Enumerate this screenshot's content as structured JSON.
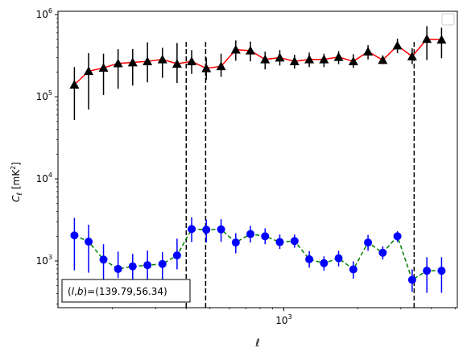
{
  "chart_data": {
    "type": "scatter",
    "xscale": "log",
    "yscale": "log",
    "xlim": [
      120,
      5100
    ],
    "ylim": [
      270,
      1100000
    ],
    "xlabel": "ℓ",
    "ylabel_main": "C",
    "ylabel_sub": "ℓ",
    "ylabel_unit": "[mK",
    "ylabel_unit_sup": "2",
    "ylabel_unit_close": "]",
    "x_ticks": [
      {
        "value": 1000,
        "label": "10",
        "exp": "3"
      }
    ],
    "y_ticks": [
      {
        "value": 1000,
        "label": "10",
        "exp": "3"
      },
      {
        "value": 10000,
        "label": "10",
        "exp": "4"
      },
      {
        "value": 100000,
        "label": "10",
        "exp": "5"
      },
      {
        "value": 1000000,
        "label": "10",
        "exp": "6"
      }
    ],
    "grid": false,
    "legend": "top-right (empty)",
    "annotation": "(l,b)=(139.79,56.34)",
    "annotation_parts": {
      "open": "(",
      "l": "l",
      "comma": ",",
      "b": "b",
      "eq": ")=(139.79,56.34)"
    },
    "vlines": [
      {
        "x": 400,
        "ymax": 470000
      },
      {
        "x": 480,
        "ymax": 470000
      },
      {
        "x": 3400,
        "ymax": 470000
      }
    ],
    "series": [
      {
        "marker": "triangle",
        "marker_color": "#000000",
        "line_color": "#ff0000",
        "line_style": "solid",
        "errorbar_color": "#000000",
        "x": [
          140,
          160,
          184,
          211,
          242,
          278,
          320,
          367,
          421,
          483,
          555,
          637,
          731,
          839,
          963,
          1106,
          1270,
          1458,
          1673,
          1921,
          2205,
          2532,
          2906,
          3337,
          3831,
          4398
        ],
        "y": [
          140000,
          205000,
          225000,
          255000,
          262000,
          270000,
          285000,
          252000,
          270000,
          222000,
          235000,
          375000,
          365000,
          285000,
          300000,
          270000,
          285000,
          285000,
          305000,
          270000,
          355000,
          280000,
          420000,
          310000,
          505000,
          495000
        ],
        "err_lo": [
          88000,
          135000,
          120000,
          130000,
          125000,
          120000,
          115000,
          105000,
          80000,
          62000,
          60000,
          100000,
          95000,
          70000,
          60000,
          50000,
          55000,
          55000,
          55000,
          45000,
          70000,
          30000,
          80000,
          60000,
          225000,
          200000
        ],
        "err_hi": [
          90000,
          135000,
          110000,
          125000,
          120000,
          190000,
          110000,
          200000,
          100000,
          78000,
          100000,
          110000,
          105000,
          70000,
          70000,
          55000,
          60000,
          50000,
          55000,
          60000,
          70000,
          40000,
          90000,
          80000,
          220000,
          200000
        ]
      },
      {
        "marker": "circle",
        "marker_color": "#0000ff",
        "line_color": "#008000",
        "line_style": "dashed",
        "errorbar_color": "#0000ff",
        "x": [
          140,
          160,
          184,
          211,
          242,
          278,
          320,
          367,
          421,
          483,
          555,
          637,
          731,
          839,
          963,
          1106,
          1270,
          1458,
          1673,
          1921,
          2205,
          2532,
          2906,
          3337,
          3831,
          4398
        ],
        "y": [
          2050,
          1720,
          1040,
          800,
          860,
          890,
          920,
          1170,
          2450,
          2400,
          2430,
          1680,
          2130,
          2000,
          1700,
          1750,
          1050,
          940,
          1080,
          790,
          1680,
          1260,
          2000,
          590,
          760,
          760
        ],
        "err_lo": [
          1280,
          1000,
          660,
          180,
          360,
          400,
          330,
          380,
          750,
          720,
          720,
          440,
          450,
          400,
          300,
          300,
          220,
          180,
          220,
          180,
          350,
          220,
          300,
          170,
          350,
          350
        ],
        "err_hi": [
          1300,
          1050,
          560,
          500,
          360,
          450,
          360,
          700,
          950,
          800,
          800,
          500,
          550,
          500,
          400,
          350,
          270,
          200,
          250,
          200,
          400,
          250,
          300,
          200,
          350,
          350
        ]
      }
    ]
  }
}
